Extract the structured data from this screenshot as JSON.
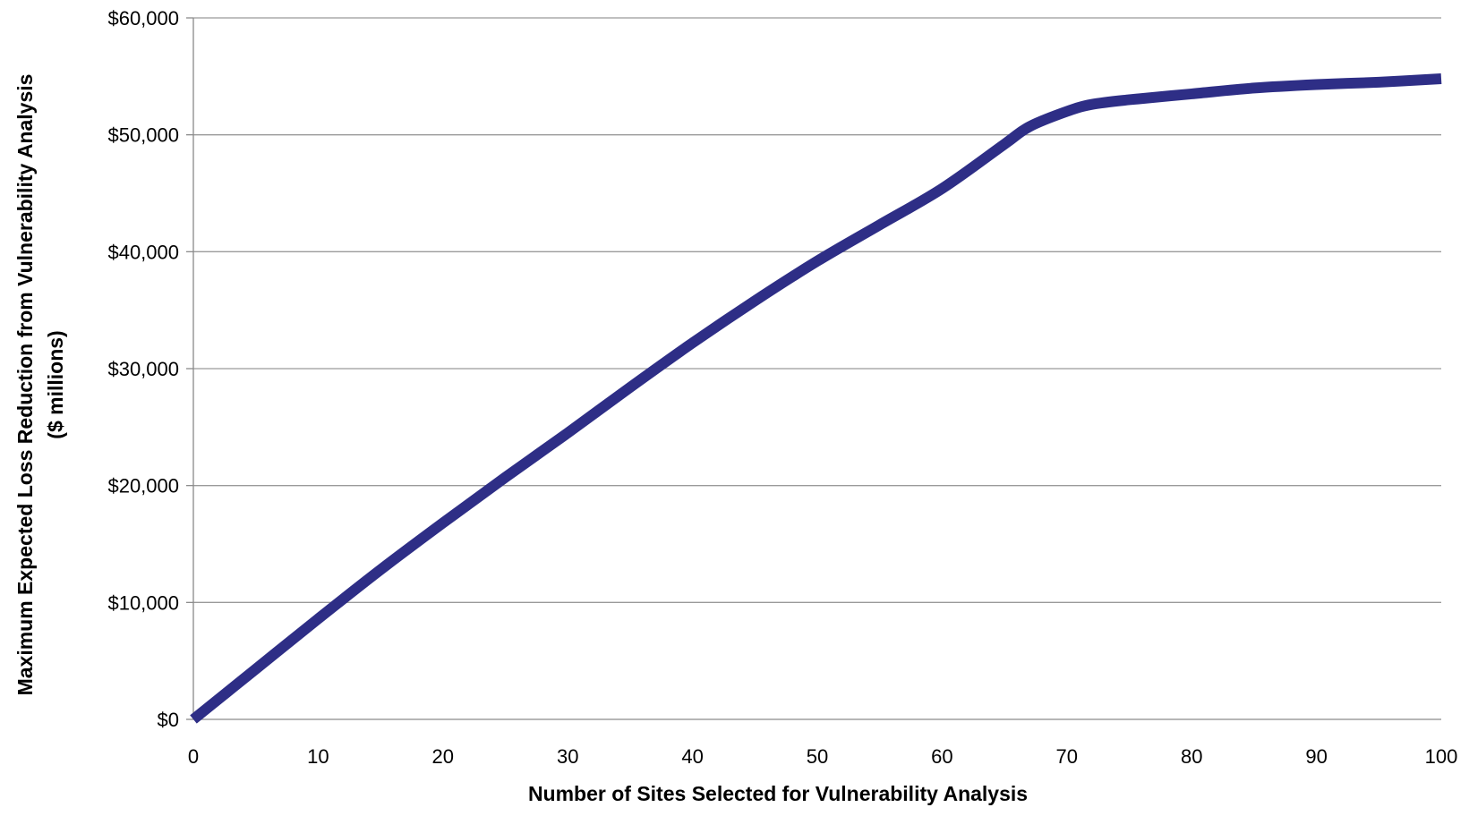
{
  "chart_data": {
    "type": "line",
    "title": "",
    "xlabel": "Number of Sites Selected for Vulnerability Analysis",
    "ylabel": "Maximum Expected Loss Reduction from Vulnerability Analysis",
    "ylabel_line2": "($ millions)",
    "xlim": [
      0,
      100
    ],
    "ylim": [
      0,
      60000
    ],
    "x_ticks": [
      0,
      10,
      20,
      30,
      40,
      50,
      60,
      70,
      80,
      90,
      100
    ],
    "x_tick_labels": [
      "0",
      "10",
      "20",
      "30",
      "40",
      "50",
      "60",
      "70",
      "80",
      "90",
      "100"
    ],
    "y_ticks": [
      0,
      10000,
      20000,
      30000,
      40000,
      50000,
      60000
    ],
    "y_tick_labels": [
      "$0",
      "$10,000",
      "$20,000",
      "$30,000",
      "$40,000",
      "$50,000",
      "$60,000"
    ],
    "grid": "horizontal",
    "legend": "none",
    "series": [
      {
        "color": "#2e2e86",
        "x": [
          0,
          5,
          10,
          15,
          20,
          25,
          30,
          35,
          40,
          45,
          50,
          55,
          60,
          65,
          67,
          70,
          72,
          75,
          80,
          85,
          90,
          95,
          100
        ],
        "y": [
          0,
          4300,
          8600,
          12800,
          16800,
          20700,
          24500,
          28400,
          32200,
          35800,
          39200,
          42300,
          45400,
          49200,
          50700,
          52000,
          52600,
          53000,
          53500,
          54000,
          54300,
          54500,
          54800
        ]
      }
    ]
  }
}
